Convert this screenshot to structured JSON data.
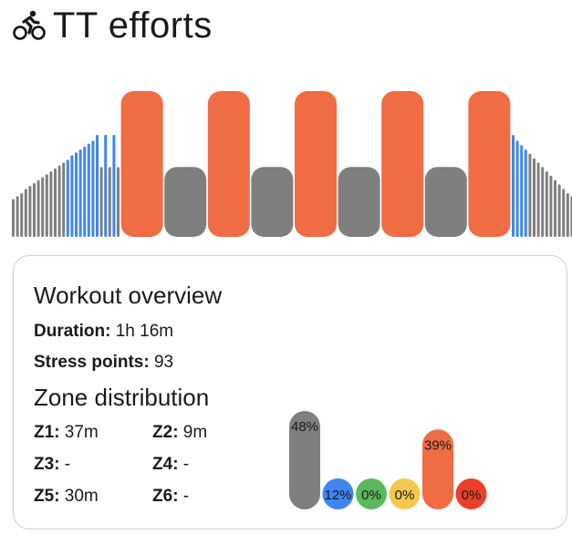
{
  "header": {
    "title": "TT efforts",
    "icon": "cyclist-icon"
  },
  "colors": {
    "z1": "#7f7f7f",
    "z2": "#3f86f0",
    "z3": "#5cb85c",
    "z4": "#f2c94c",
    "z5": "#ef6c44",
    "z6": "#e8412b"
  },
  "workout_graph": {
    "blocks": [
      {
        "zone": "z1",
        "level": 0.26
      },
      {
        "zone": "z1",
        "level": 0.28
      },
      {
        "zone": "z1",
        "level": 0.3
      },
      {
        "zone": "z1",
        "level": 0.33
      },
      {
        "zone": "z1",
        "level": 0.35
      },
      {
        "zone": "z1",
        "level": 0.37
      },
      {
        "zone": "z1",
        "level": 0.39
      },
      {
        "zone": "z1",
        "level": 0.41
      },
      {
        "zone": "z1",
        "level": 0.43
      },
      {
        "zone": "z1",
        "level": 0.45
      },
      {
        "zone": "z1",
        "level": 0.47
      },
      {
        "zone": "z1",
        "level": 0.49
      },
      {
        "zone": "z1",
        "level": 0.51
      },
      {
        "zone": "z2",
        "level": 0.53
      },
      {
        "zone": "z2",
        "level": 0.56
      },
      {
        "zone": "z2",
        "level": 0.58
      },
      {
        "zone": "z2",
        "level": 0.6
      },
      {
        "zone": "z2",
        "level": 0.62
      },
      {
        "zone": "z2",
        "level": 0.64
      },
      {
        "zone": "z2",
        "level": 0.66
      },
      {
        "zone": "z2",
        "level": 0.7
      },
      {
        "zone": "z1",
        "level": 0.48
      },
      {
        "zone": "z2",
        "level": 0.7
      },
      {
        "zone": "z1",
        "level": 0.48
      },
      {
        "zone": "z2",
        "level": 0.7
      },
      {
        "zone": "z1",
        "level": 0.48
      },
      {
        "zone": "z5",
        "level": 1.0,
        "wide": true
      },
      {
        "zone": "z1",
        "level": 0.48,
        "wide": true
      },
      {
        "zone": "z5",
        "level": 1.0,
        "wide": true
      },
      {
        "zone": "z1",
        "level": 0.48,
        "wide": true
      },
      {
        "zone": "z5",
        "level": 1.0,
        "wide": true
      },
      {
        "zone": "z1",
        "level": 0.48,
        "wide": true
      },
      {
        "zone": "z5",
        "level": 1.0,
        "wide": true
      },
      {
        "zone": "z1",
        "level": 0.48,
        "wide": true
      },
      {
        "zone": "z5",
        "level": 1.0,
        "wide": true
      },
      {
        "zone": "z2",
        "level": 0.7
      },
      {
        "zone": "z2",
        "level": 0.66
      },
      {
        "zone": "z2",
        "level": 0.63
      },
      {
        "zone": "z2",
        "level": 0.6
      },
      {
        "zone": "z1",
        "level": 0.57
      },
      {
        "zone": "z1",
        "level": 0.54
      },
      {
        "zone": "z1",
        "level": 0.51
      },
      {
        "zone": "z1",
        "level": 0.48
      },
      {
        "zone": "z1",
        "level": 0.45
      },
      {
        "zone": "z1",
        "level": 0.42
      },
      {
        "zone": "z1",
        "level": 0.39
      },
      {
        "zone": "z1",
        "level": 0.36
      },
      {
        "zone": "z1",
        "level": 0.33
      },
      {
        "zone": "z1",
        "level": 0.3
      },
      {
        "zone": "z1",
        "level": 0.28
      },
      {
        "zone": "z1",
        "level": 0.26
      }
    ]
  },
  "overview": {
    "title": "Workout overview",
    "duration_label": "Duration",
    "duration_value": "1h 16m",
    "stress_label": "Stress points",
    "stress_value": "93",
    "zone_title": "Zone distribution",
    "zones": [
      {
        "label": "Z1",
        "value": "37m"
      },
      {
        "label": "Z2",
        "value": "9m"
      },
      {
        "label": "Z3",
        "value": "-"
      },
      {
        "label": "Z4",
        "value": "-"
      },
      {
        "label": "Z5",
        "value": "30m"
      },
      {
        "label": "Z6",
        "value": "-"
      }
    ]
  },
  "zone_distribution": [
    {
      "zone": "z1",
      "pct": 48,
      "label": "48%"
    },
    {
      "zone": "z2",
      "pct": 12,
      "label": "12%"
    },
    {
      "zone": "z3",
      "pct": 0,
      "label": "0%"
    },
    {
      "zone": "z4",
      "pct": 0,
      "label": "0%"
    },
    {
      "zone": "z5",
      "pct": 39,
      "label": "39%"
    },
    {
      "zone": "z6",
      "pct": 0,
      "label": "0%"
    }
  ]
}
